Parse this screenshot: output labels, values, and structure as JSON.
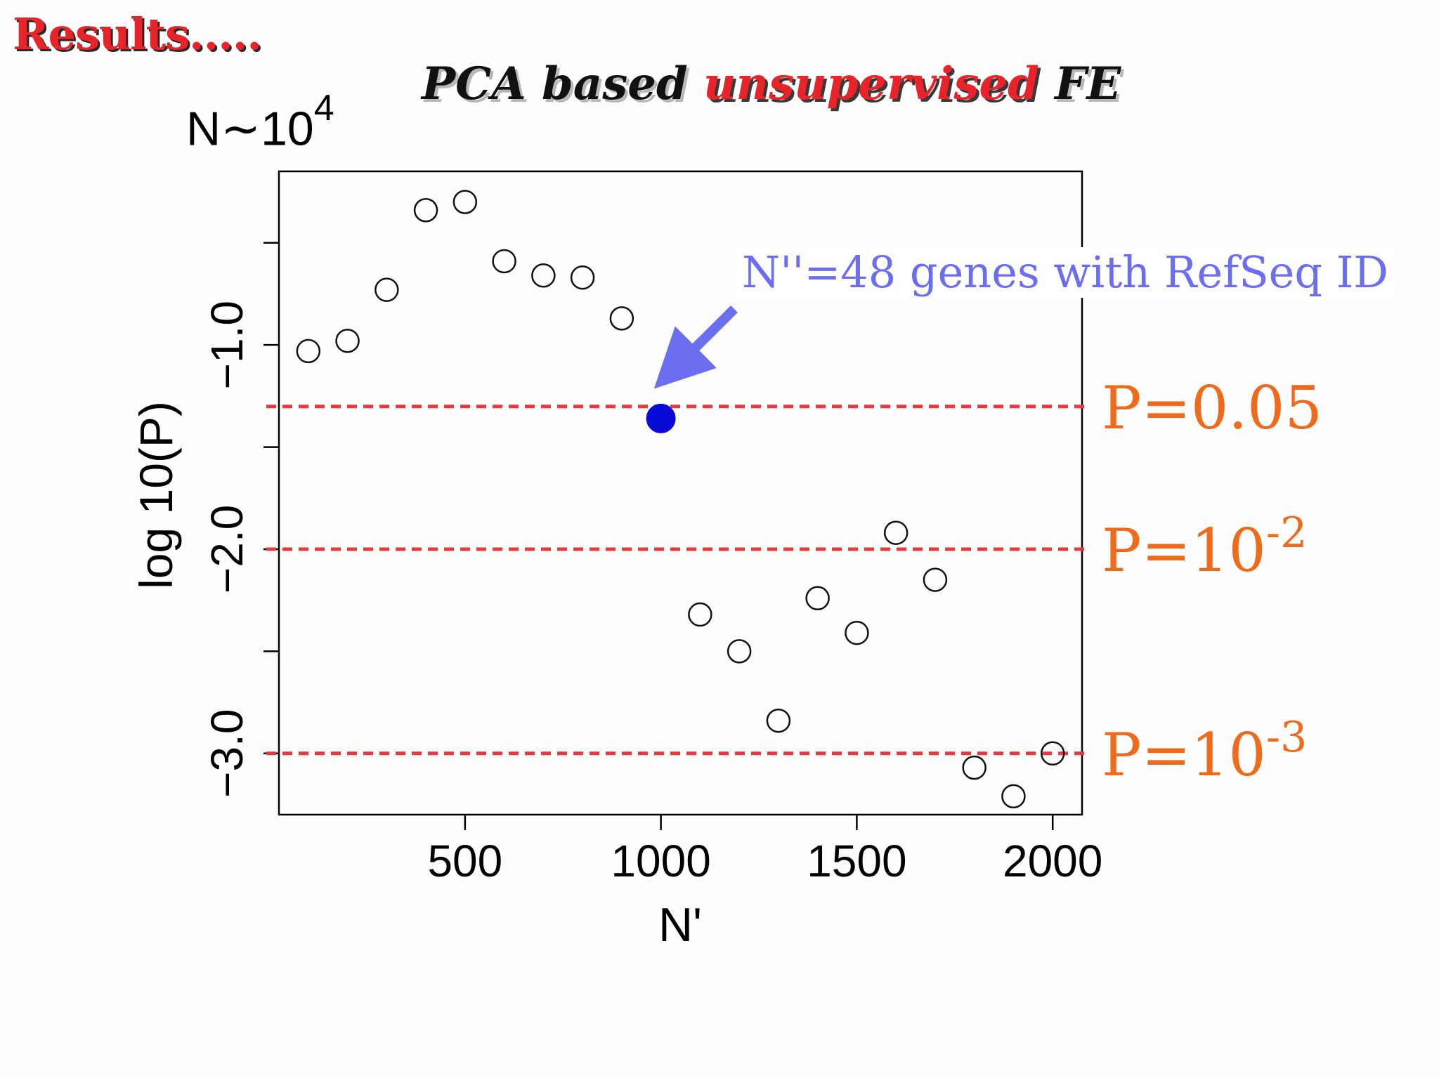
{
  "header": {
    "results_label": "Results.....",
    "subtitle_part1": "PCA based ",
    "subtitle_part2": "unsupervised",
    "subtitle_part3": " FE",
    "n_label_base": "N∼10",
    "n_label_exp": "4"
  },
  "colors": {
    "title_red": "#e8232a",
    "threshold_red": "#e83a3a",
    "threshold_label_orange": "#f06a1b",
    "highlight_point": "#0a0ad6",
    "annotation_blue": "#6b6ef0"
  },
  "annotation": {
    "text": "N''=48 genes with RefSeq ID",
    "points_to_x": 1000
  },
  "thresholds": [
    {
      "y": -1.301,
      "label_base": "P=0.05",
      "label_exp": ""
    },
    {
      "y": -2.0,
      "label_base": "P=10",
      "label_exp": "-2"
    },
    {
      "y": -3.0,
      "label_base": "P=10",
      "label_exp": "-3"
    }
  ],
  "chart_data": {
    "type": "scatter",
    "title": "",
    "xlabel": "N'",
    "ylabel": "log 10(P)",
    "xlim": [
      25,
      2075
    ],
    "ylim": [
      -3.3,
      -0.15
    ],
    "xticks": [
      500,
      1000,
      1500,
      2000
    ],
    "xtick_labels": [
      "500",
      "1000",
      "1500",
      "2000"
    ],
    "yticks": [
      -3.0,
      -2.5,
      -2.0,
      -1.5,
      -1.0,
      -0.5
    ],
    "ytick_labels": [
      "−3.0",
      "",
      "−2.0",
      "",
      "−1.0",
      ""
    ],
    "grid": false,
    "points": [
      {
        "x": 100,
        "y": -1.03
      },
      {
        "x": 200,
        "y": -0.98
      },
      {
        "x": 300,
        "y": -0.73
      },
      {
        "x": 400,
        "y": -0.34
      },
      {
        "x": 500,
        "y": -0.3
      },
      {
        "x": 600,
        "y": -0.59
      },
      {
        "x": 700,
        "y": -0.66
      },
      {
        "x": 800,
        "y": -0.67
      },
      {
        "x": 900,
        "y": -0.87
      },
      {
        "x": 1000,
        "y": -1.36,
        "highlight": true
      },
      {
        "x": 1100,
        "y": -2.32
      },
      {
        "x": 1200,
        "y": -2.5
      },
      {
        "x": 1300,
        "y": -2.84
      },
      {
        "x": 1400,
        "y": -2.24
      },
      {
        "x": 1500,
        "y": -2.41
      },
      {
        "x": 1600,
        "y": -1.92
      },
      {
        "x": 1700,
        "y": -2.15
      },
      {
        "x": 1800,
        "y": -3.07
      },
      {
        "x": 1900,
        "y": -3.21
      },
      {
        "x": 2000,
        "y": -3.0
      }
    ]
  }
}
